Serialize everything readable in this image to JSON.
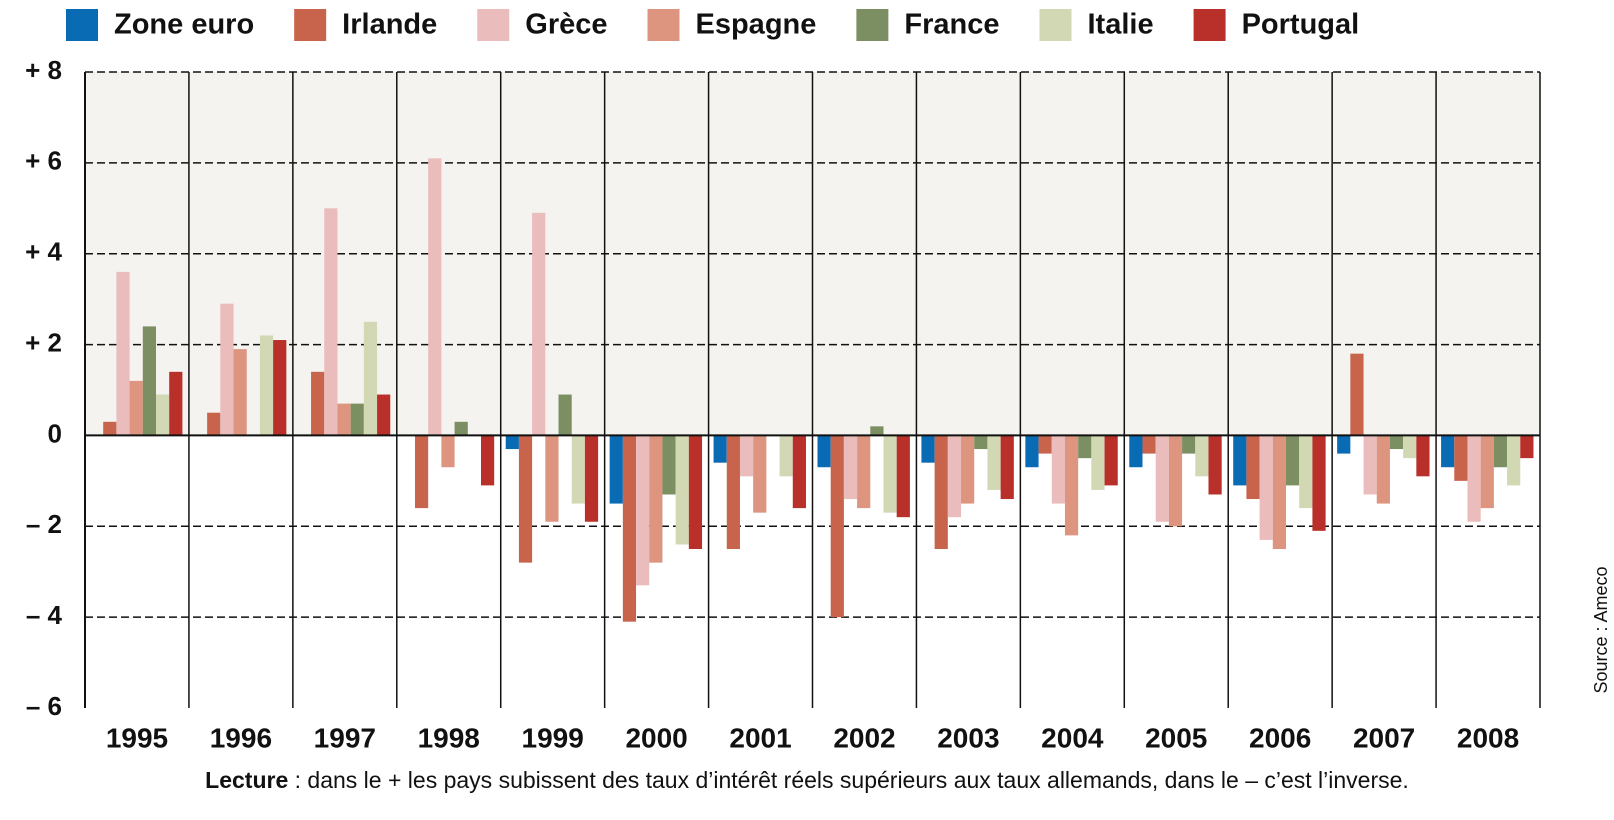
{
  "chart_data": {
    "type": "bar",
    "categories": [
      "1995",
      "1996",
      "1997",
      "1998",
      "1999",
      "2000",
      "2001",
      "2002",
      "2003",
      "2004",
      "2005",
      "2006",
      "2007",
      "2008"
    ],
    "series": [
      {
        "name": "Zone euro",
        "color": "#0a6bb5",
        "values": [
          0,
          0,
          0,
          0,
          -0.3,
          -1.5,
          -0.6,
          -0.7,
          -0.6,
          -0.7,
          -0.7,
          -1.1,
          -0.4,
          -0.7
        ]
      },
      {
        "name": "Irlande",
        "color": "#c8644c",
        "values": [
          0.3,
          0.5,
          1.4,
          -1.6,
          -2.8,
          -4.1,
          -2.5,
          -4.0,
          -2.5,
          -0.4,
          -0.4,
          -1.4,
          1.8,
          -1.0
        ]
      },
      {
        "name": "Grèce",
        "color": "#ebbcbc",
        "values": [
          3.6,
          2.9,
          5.0,
          6.1,
          4.9,
          -3.3,
          -0.9,
          -1.4,
          -1.8,
          -1.5,
          -1.9,
          -2.3,
          -1.3,
          -1.9
        ]
      },
      {
        "name": "Espagne",
        "color": "#dd957f",
        "values": [
          1.2,
          1.9,
          0.7,
          -0.7,
          -1.9,
          -2.8,
          -1.7,
          -1.6,
          -1.5,
          -2.2,
          -2.0,
          -2.5,
          -1.5,
          -1.6
        ]
      },
      {
        "name": "France",
        "color": "#7b8f62",
        "values": [
          2.4,
          0,
          0.7,
          0.3,
          0.9,
          -1.3,
          0,
          0.2,
          -0.3,
          -0.5,
          -0.4,
          -1.1,
          -0.3,
          -0.7
        ]
      },
      {
        "name": "Italie",
        "color": "#d3d8b4",
        "values": [
          0.9,
          2.2,
          2.5,
          0,
          -1.5,
          -2.4,
          -0.9,
          -1.7,
          -1.2,
          -1.2,
          -0.9,
          -1.6,
          -0.5,
          -1.1
        ]
      },
      {
        "name": "Portugal",
        "color": "#b9302a",
        "values": [
          1.4,
          2.1,
          0.9,
          -1.1,
          -1.9,
          -2.5,
          -1.6,
          -1.8,
          -1.4,
          -1.1,
          -1.3,
          -2.1,
          -0.9,
          -0.5
        ]
      }
    ],
    "ylim": [
      -6,
      8
    ],
    "yticks": [
      {
        "value": -6,
        "label": "– 6"
      },
      {
        "value": -4,
        "label": "– 4"
      },
      {
        "value": -2,
        "label": "– 2"
      },
      0,
      {
        "value": 2,
        "label": "+ 2"
      },
      {
        "value": 4,
        "label": "+ 4"
      },
      {
        "value": 6,
        "label": "+ 6"
      },
      {
        "value": 8,
        "label": "+ 8"
      }
    ],
    "grid": true,
    "note": {
      "label": "Lecture",
      "text": " : dans le + les pays subissent des taux d’intérêt réels supérieurs aux taux allemands, dans le – c’est l’inverse."
    },
    "source": "Source : Ameco"
  }
}
